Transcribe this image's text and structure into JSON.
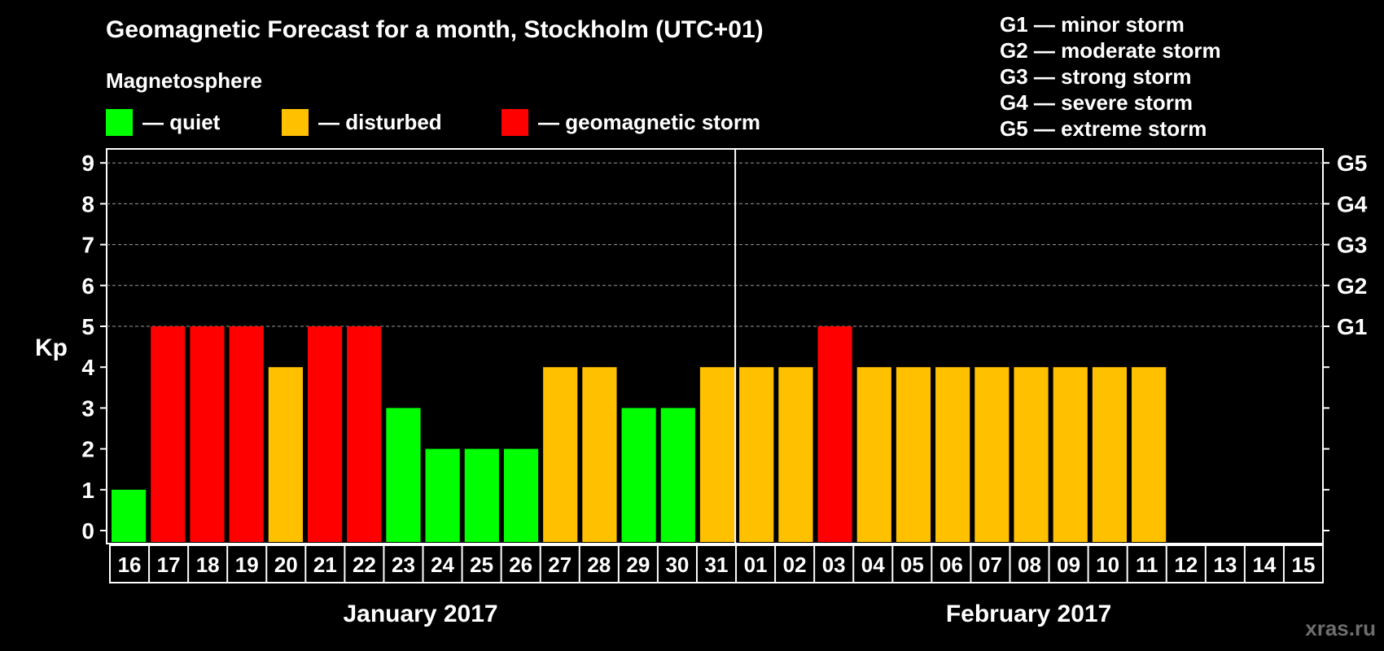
{
  "title": "Geomagnetic Forecast for a month, Stockholm (UTC+01)",
  "magnetosphere": {
    "title": "Magnetosphere",
    "items": [
      {
        "label": "— quiet",
        "color": "#00ff00"
      },
      {
        "label": "— disturbed",
        "color": "#ffc000"
      },
      {
        "label": "— geomagnetic storm",
        "color": "#ff0000"
      }
    ]
  },
  "g_legend": [
    "G1 — minor storm",
    "G2 — moderate storm",
    "G3 — strong storm",
    "G4 — severe storm",
    "G5 — extreme storm"
  ],
  "watermark": "xras.ru",
  "chart_data": {
    "type": "bar",
    "ylabel": "Kp",
    "ylim": [
      0,
      9
    ],
    "yticks": [
      "0",
      "1",
      "2",
      "3",
      "4",
      "5",
      "6",
      "7",
      "8",
      "9"
    ],
    "right_ticks": [
      {
        "kp": 5,
        "label": "G1"
      },
      {
        "kp": 6,
        "label": "G2"
      },
      {
        "kp": 7,
        "label": "G3"
      },
      {
        "kp": 8,
        "label": "G4"
      },
      {
        "kp": 9,
        "label": "G5"
      }
    ],
    "grid": "dashed horizontal at Kp 5–9",
    "months": [
      "January 2017",
      "February 2017"
    ],
    "categories": [
      "16",
      "17",
      "18",
      "19",
      "20",
      "21",
      "22",
      "23",
      "24",
      "25",
      "26",
      "27",
      "28",
      "29",
      "30",
      "31",
      "01",
      "02",
      "03",
      "04",
      "05",
      "06",
      "07",
      "08",
      "09",
      "10",
      "11",
      "12",
      "13",
      "14",
      "15"
    ],
    "values": [
      1,
      5,
      5,
      5,
      4,
      5,
      5,
      3,
      2,
      2,
      2,
      4,
      4,
      3,
      3,
      4,
      4,
      4,
      5,
      4,
      4,
      4,
      4,
      4,
      4,
      4,
      4,
      null,
      null,
      null,
      null
    ],
    "status": [
      "quiet",
      "storm",
      "storm",
      "storm",
      "disturbed",
      "storm",
      "storm",
      "quiet",
      "quiet",
      "quiet",
      "quiet",
      "disturbed",
      "disturbed",
      "quiet",
      "quiet",
      "disturbed",
      "disturbed",
      "disturbed",
      "storm",
      "disturbed",
      "disturbed",
      "disturbed",
      "disturbed",
      "disturbed",
      "disturbed",
      "disturbed",
      "disturbed",
      null,
      null,
      null,
      null
    ],
    "colors": {
      "quiet": "#00ff00",
      "disturbed": "#ffc000",
      "storm": "#ff0000"
    }
  }
}
